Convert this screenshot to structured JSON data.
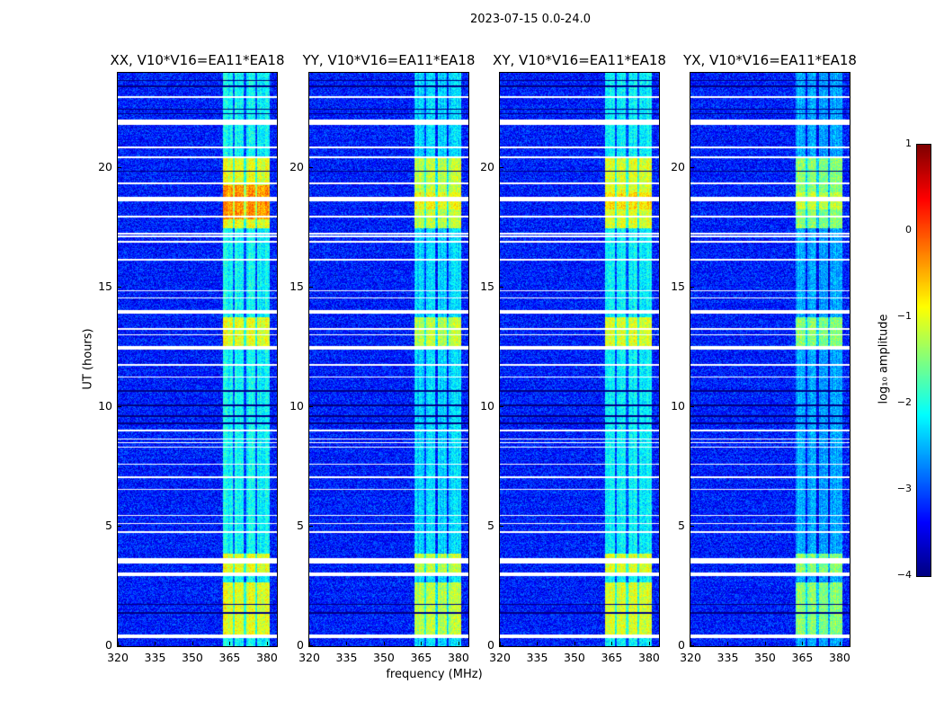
{
  "chart_data": {
    "type": "heatmap",
    "suptitle": "2023-07-15 0.0-24.0",
    "xlabel": "frequency (MHz)",
    "ylabel": "UT (hours)",
    "xlim": [
      320,
      384
    ],
    "ylim": [
      0,
      24
    ],
    "xticks": [
      320,
      335,
      350,
      365,
      380
    ],
    "yticks": [
      0,
      5,
      10,
      15,
      20
    ],
    "panels": [
      {
        "title": "XX, V10*V16=EA11*EA18",
        "gain": 1.0
      },
      {
        "title": "YY, V10*V16=EA11*EA18",
        "gain": 0.85
      },
      {
        "title": "XY, V10*V16=EA11*EA18",
        "gain": 0.95
      },
      {
        "title": "YX, V10*V16=EA11*EA18",
        "gain": 0.7
      }
    ],
    "signal_band_mhz": [
      362,
      381
    ],
    "band_notches_mhz": [
      366.5,
      371,
      375.5
    ],
    "strong_intervals_hours": [
      [
        17.5,
        20.5
      ],
      [
        12.6,
        13.8
      ],
      [
        3.1,
        3.9
      ],
      [
        0.5,
        2.7
      ]
    ],
    "flagged_intervals_hours": [
      [
        22.95,
        23.05
      ],
      [
        21.85,
        22.05
      ],
      [
        20.85,
        20.92
      ],
      [
        20.45,
        20.52
      ],
      [
        19.35,
        19.42
      ],
      [
        18.65,
        18.82
      ],
      [
        17.97,
        18.03
      ],
      [
        17.25,
        17.33
      ],
      [
        17.15,
        17.2
      ],
      [
        16.92,
        16.98
      ],
      [
        16.17,
        16.22
      ],
      [
        14.87,
        14.92
      ],
      [
        14.57,
        14.62
      ],
      [
        13.93,
        14.1
      ],
      [
        13.27,
        13.32
      ],
      [
        13.02,
        13.07
      ],
      [
        12.43,
        12.6
      ],
      [
        11.77,
        11.82
      ],
      [
        11.27,
        11.32
      ],
      [
        9.02,
        9.07
      ],
      [
        8.67,
        8.72
      ],
      [
        8.52,
        8.57
      ],
      [
        8.32,
        8.37
      ],
      [
        7.6,
        7.65
      ],
      [
        7.07,
        7.12
      ],
      [
        6.57,
        6.62
      ],
      [
        5.47,
        5.52
      ],
      [
        5.12,
        5.17
      ],
      [
        4.77,
        4.82
      ],
      [
        3.48,
        3.72
      ],
      [
        2.95,
        3.12
      ],
      [
        0.34,
        0.5
      ]
    ],
    "dark_lines_hours": [
      23.7,
      23.45,
      22.5,
      22.3,
      19.9,
      10.7,
      10.1,
      9.65,
      9.35,
      1.77,
      1.4
    ],
    "colorbar": {
      "label": "log₁₀ amplitude",
      "range": [
        -4,
        1
      ],
      "ticks": [
        "1",
        "0",
        "−1",
        "−2",
        "−3",
        "−4"
      ],
      "tick_values": [
        1,
        0,
        -1,
        -2,
        -3,
        -4
      ],
      "colormap": "jet"
    }
  }
}
